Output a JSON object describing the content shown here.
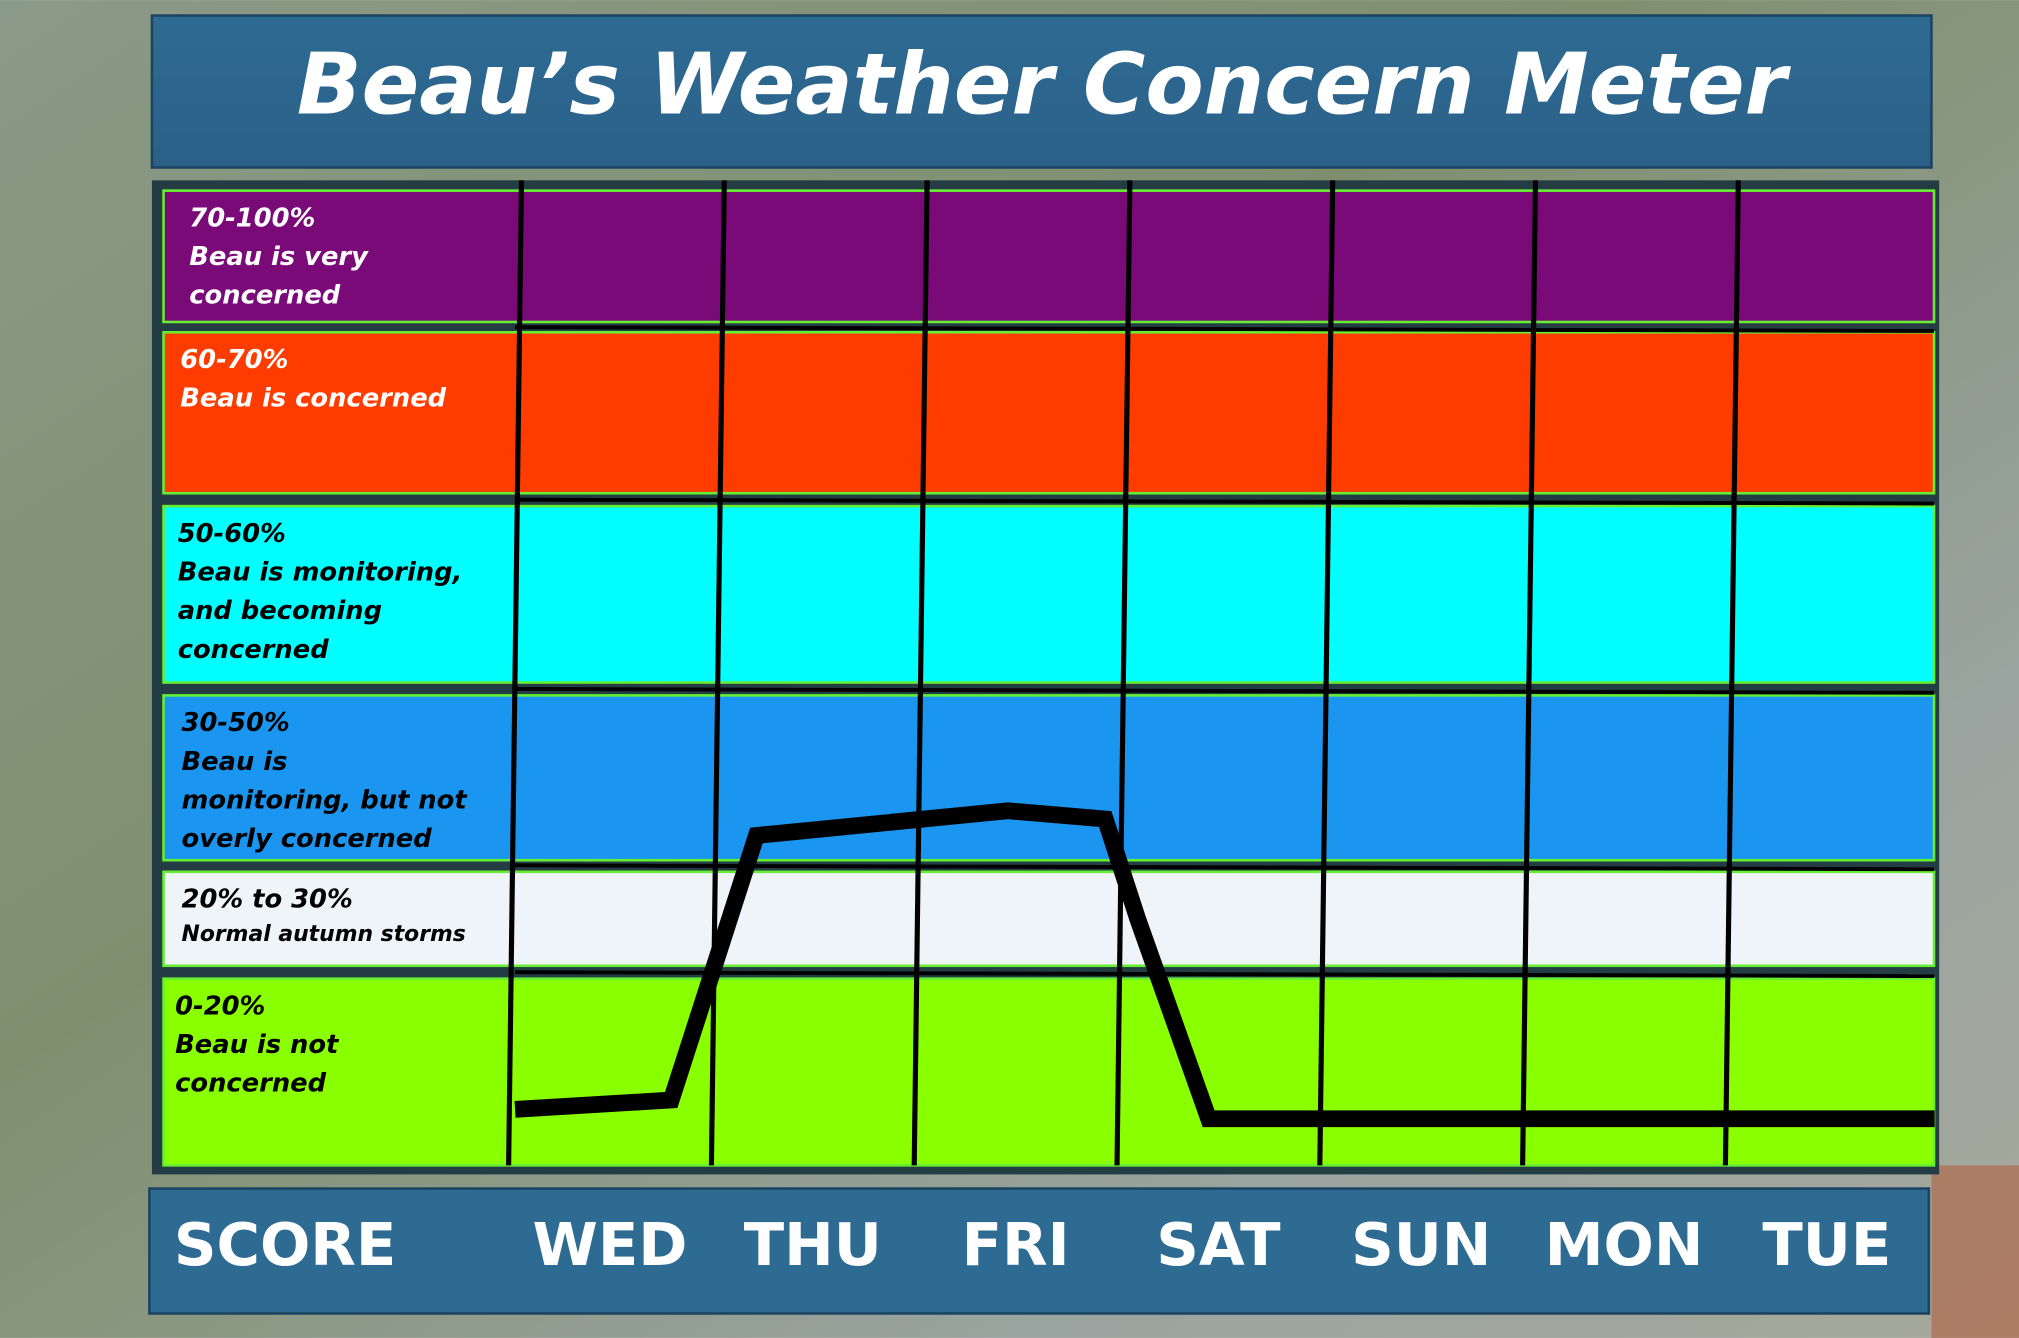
{
  "chart_data": {
    "type": "line",
    "title": "Beau’s Weather Concern Meter",
    "x_label": "SCORE",
    "categories": [
      "WED",
      "THU",
      "FRI",
      "SAT",
      "SUN",
      "MON",
      "TUE"
    ],
    "bands": [
      {
        "range": [
          70,
          100
        ],
        "color": "#7a0a78",
        "text_color": "#ffffff",
        "lines": [
          "70-100%",
          "Beau is very",
          "concerned"
        ]
      },
      {
        "range": [
          60,
          70
        ],
        "color": "#ff3c00",
        "text_color": "#ffffff",
        "lines": [
          "60-70%",
          "Beau is concerned"
        ]
      },
      {
        "range": [
          50,
          60
        ],
        "color": "#00ffff",
        "text_color": "#000000",
        "lines": [
          "50-60%",
          "Beau is monitoring,",
          "and becoming",
          "concerned"
        ]
      },
      {
        "range": [
          30,
          50
        ],
        "color": "#1a96f0",
        "text_color": "#000000",
        "lines": [
          "30-50%",
          "Beau is",
          "monitoring, but  not",
          "overly  concerned"
        ]
      },
      {
        "range": [
          20,
          30
        ],
        "color": "#eef4f8",
        "text_color": "#000000",
        "lines": [
          "20% to 30%",
          "Normal autumn storms"
        ]
      },
      {
        "range": [
          0,
          20
        ],
        "color": "#8aff00",
        "text_color": "#000000",
        "lines": [
          "0-20%",
          "Beau is not",
          "concerned"
        ]
      }
    ],
    "xlim": [
      0,
      7
    ],
    "series": [
      {
        "color": "#000000",
        "x": [
          0,
          0.77,
          1.19,
          2.43,
          2.91,
          3.07,
          3.42,
          7
        ],
        "values": [
          6,
          7,
          33,
          36,
          35,
          25,
          5,
          5
        ]
      }
    ]
  }
}
